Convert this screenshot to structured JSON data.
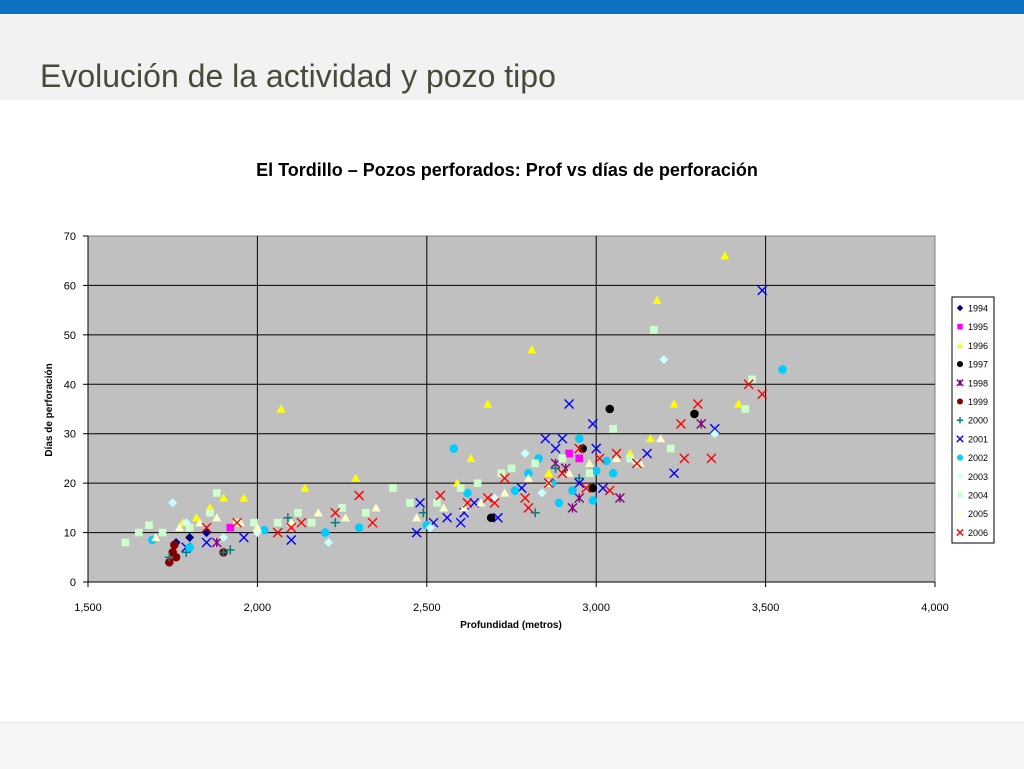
{
  "slide": {
    "title": "Evolución de la actividad y pozo tipo"
  },
  "colors": {
    "topbar": "#0a72c1",
    "plot_background": "#c0c0c0"
  },
  "chart_data": {
    "type": "scatter",
    "title": "El Tordillo – Pozos perforados: Prof vs días de perforación",
    "xlabel": "Profundidad (metros)",
    "ylabel": "Días de perforación",
    "xlim": [
      1500,
      4000
    ],
    "ylim": [
      0,
      70
    ],
    "xticks": [
      1500,
      2000,
      2500,
      3000,
      3500,
      4000
    ],
    "xtick_labels": [
      "1,500",
      "2,000",
      "2,500",
      "3,000",
      "3,500",
      "4,000"
    ],
    "yticks": [
      0,
      10,
      20,
      30,
      40,
      50,
      60,
      70
    ],
    "ytick_labels": [
      "0",
      "10",
      "20",
      "30",
      "40",
      "50",
      "60",
      "70"
    ],
    "grid": true,
    "legend_position": "right",
    "series": [
      {
        "name": "1994",
        "marker": "diamond",
        "color": "#000080",
        "points": [
          [
            1760,
            8
          ],
          [
            1800,
            9
          ],
          [
            1850,
            10
          ]
        ]
      },
      {
        "name": "1995",
        "marker": "square",
        "color": "#ff00ff",
        "points": [
          [
            1920,
            11
          ],
          [
            2920,
            26
          ],
          [
            2950,
            25
          ]
        ]
      },
      {
        "name": "1996",
        "marker": "triangle",
        "color": "#ffff00",
        "points": [
          [
            1780,
            12
          ],
          [
            1820,
            13
          ],
          [
            1860,
            15
          ],
          [
            1900,
            17
          ],
          [
            1960,
            17
          ],
          [
            2070,
            35
          ],
          [
            2140,
            19
          ],
          [
            2290,
            21
          ],
          [
            2680,
            36
          ],
          [
            2810,
            47
          ],
          [
            2860,
            22
          ],
          [
            3160,
            29
          ],
          [
            3180,
            57
          ],
          [
            3230,
            36
          ],
          [
            3380,
            66
          ],
          [
            3420,
            36
          ],
          [
            3100,
            26
          ],
          [
            2590,
            20
          ],
          [
            2630,
            25
          ]
        ]
      },
      {
        "name": "1997",
        "marker": "circle",
        "color": "#000000",
        "points": [
          [
            2690,
            13
          ],
          [
            2960,
            27
          ],
          [
            3040,
            35
          ],
          [
            3290,
            34
          ],
          [
            2990,
            19
          ]
        ]
      },
      {
        "name": "1998",
        "marker": "star",
        "color": "#800080",
        "points": [
          [
            1880,
            8
          ],
          [
            2880,
            24
          ],
          [
            2910,
            23
          ],
          [
            2930,
            15
          ],
          [
            2950,
            17
          ],
          [
            3070,
            17
          ],
          [
            3310,
            32
          ]
        ]
      },
      {
        "name": "1999",
        "marker": "circle",
        "color": "#800000",
        "points": [
          [
            1740,
            4
          ],
          [
            1750,
            6
          ],
          [
            1755,
            7.5
          ],
          [
            1760,
            5
          ],
          [
            1900,
            6
          ]
        ]
      },
      {
        "name": "2000",
        "marker": "plus",
        "color": "#008080",
        "points": [
          [
            1740,
            5
          ],
          [
            1790,
            6
          ],
          [
            1900,
            6
          ],
          [
            1920,
            6.5
          ],
          [
            2090,
            13
          ],
          [
            2230,
            12
          ],
          [
            2490,
            14
          ],
          [
            2820,
            14
          ],
          [
            2880,
            23
          ],
          [
            2950,
            21
          ]
        ]
      },
      {
        "name": "2001",
        "marker": "x",
        "color": "#0000ff",
        "points": [
          [
            1790,
            7
          ],
          [
            1850,
            8
          ],
          [
            1960,
            9
          ],
          [
            2100,
            8.5
          ],
          [
            2470,
            10
          ],
          [
            2520,
            12
          ],
          [
            2560,
            13
          ],
          [
            2600,
            12
          ],
          [
            2640,
            16
          ],
          [
            2710,
            13
          ],
          [
            2780,
            19
          ],
          [
            2850,
            29
          ],
          [
            2880,
            27
          ],
          [
            2900,
            29
          ],
          [
            2920,
            36
          ],
          [
            2990,
            32
          ],
          [
            3000,
            27
          ],
          [
            3020,
            19
          ],
          [
            3150,
            26
          ],
          [
            3230,
            22
          ],
          [
            3350,
            31
          ],
          [
            3490,
            59
          ],
          [
            2480,
            16
          ],
          [
            2610,
            14
          ],
          [
            2950,
            20
          ]
        ]
      },
      {
        "name": "2002",
        "marker": "circle",
        "color": "#00ccff",
        "points": [
          [
            1690,
            8.5
          ],
          [
            1800,
            7
          ],
          [
            2020,
            10.5
          ],
          [
            2200,
            10
          ],
          [
            2300,
            11
          ],
          [
            2500,
            11.5
          ],
          [
            2580,
            27
          ],
          [
            2620,
            18
          ],
          [
            2760,
            18.5
          ],
          [
            2800,
            22
          ],
          [
            2830,
            25
          ],
          [
            2870,
            20
          ],
          [
            2890,
            16
          ],
          [
            2930,
            18.5
          ],
          [
            2950,
            29
          ],
          [
            3000,
            22.5
          ],
          [
            3030,
            24.5
          ],
          [
            3050,
            22
          ],
          [
            3550,
            43
          ],
          [
            2990,
            16.5
          ]
        ]
      },
      {
        "name": "2003",
        "marker": "diamond",
        "color": "#ccffff",
        "points": [
          [
            1750,
            16
          ],
          [
            1790,
            12
          ],
          [
            1900,
            9
          ],
          [
            2000,
            10
          ],
          [
            2210,
            8
          ],
          [
            2510,
            11
          ],
          [
            2700,
            17
          ],
          [
            2790,
            26
          ],
          [
            2840,
            18
          ],
          [
            3200,
            45
          ],
          [
            3350,
            30
          ],
          [
            3120,
            24
          ]
        ]
      },
      {
        "name": "2004",
        "marker": "square",
        "color": "#ccffcc",
        "points": [
          [
            1610,
            8
          ],
          [
            1650,
            10
          ],
          [
            1680,
            11.5
          ],
          [
            1720,
            10
          ],
          [
            1800,
            11
          ],
          [
            1860,
            14
          ],
          [
            1880,
            18
          ],
          [
            1940,
            12
          ],
          [
            1990,
            12
          ],
          [
            2060,
            12
          ],
          [
            2120,
            14
          ],
          [
            2160,
            12
          ],
          [
            2250,
            15
          ],
          [
            2320,
            14
          ],
          [
            2400,
            19
          ],
          [
            2450,
            16
          ],
          [
            2530,
            16
          ],
          [
            2600,
            19
          ],
          [
            2650,
            20
          ],
          [
            2720,
            22
          ],
          [
            2750,
            23
          ],
          [
            2820,
            24
          ],
          [
            2900,
            25
          ],
          [
            2980,
            22
          ],
          [
            3050,
            31
          ],
          [
            3100,
            25
          ],
          [
            3170,
            51
          ],
          [
            3220,
            27
          ],
          [
            3440,
            35
          ],
          [
            3460,
            41
          ]
        ]
      },
      {
        "name": "2005",
        "marker": "triangle",
        "color": "#ffffcc",
        "points": [
          [
            1700,
            9
          ],
          [
            1770,
            11
          ],
          [
            1830,
            12
          ],
          [
            1880,
            13
          ],
          [
            1950,
            12
          ],
          [
            2000,
            11
          ],
          [
            2100,
            12
          ],
          [
            2180,
            14
          ],
          [
            2260,
            13
          ],
          [
            2350,
            15
          ],
          [
            2470,
            13
          ],
          [
            2550,
            15
          ],
          [
            2610,
            15
          ],
          [
            2660,
            16
          ],
          [
            2730,
            18
          ],
          [
            2800,
            21
          ],
          [
            2860,
            20
          ],
          [
            2920,
            22
          ],
          [
            2980,
            24
          ],
          [
            3060,
            25
          ],
          [
            3130,
            24
          ],
          [
            3190,
            29
          ]
        ]
      },
      {
        "name": "2006",
        "marker": "x",
        "color": "#ff0000",
        "points": [
          [
            1850,
            11
          ],
          [
            1940,
            12
          ],
          [
            2060,
            10
          ],
          [
            2100,
            11
          ],
          [
            2130,
            12
          ],
          [
            2230,
            14
          ],
          [
            2300,
            17.5
          ],
          [
            2340,
            12
          ],
          [
            2540,
            17.5
          ],
          [
            2620,
            16
          ],
          [
            2680,
            17
          ],
          [
            2700,
            16
          ],
          [
            2730,
            21
          ],
          [
            2790,
            17
          ],
          [
            2800,
            15
          ],
          [
            2860,
            20
          ],
          [
            2900,
            22
          ],
          [
            2950,
            27
          ],
          [
            2970,
            19
          ],
          [
            3010,
            25
          ],
          [
            3040,
            18.5
          ],
          [
            3060,
            26
          ],
          [
            3120,
            24
          ],
          [
            3250,
            32
          ],
          [
            3260,
            25
          ],
          [
            3300,
            36
          ],
          [
            3340,
            25
          ],
          [
            3450,
            40
          ],
          [
            3490,
            38
          ]
        ]
      }
    ]
  }
}
